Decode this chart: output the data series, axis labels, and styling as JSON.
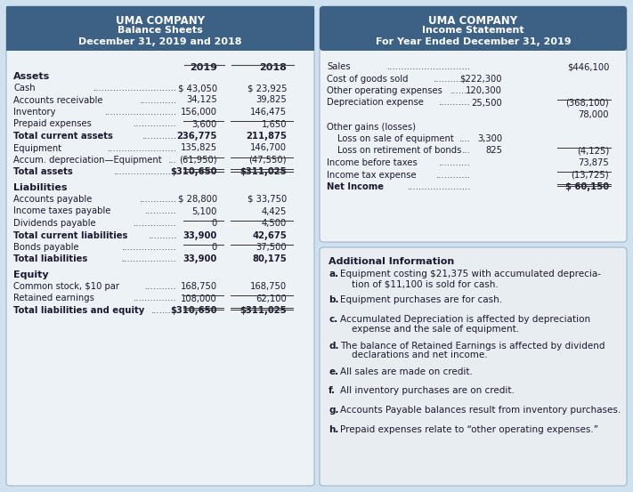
{
  "bg_color": "#cfe0ee",
  "header_bg": "#3d6184",
  "header_text_color": "#ffffff",
  "panel_bg": "#edf2f7",
  "panel_bg2": "#e8edf2",
  "text_color": "#1a1a2e",
  "left_header": [
    "UMA COMPANY",
    "Balance Sheets",
    "December 31, 2019 and 2018"
  ],
  "right_header": [
    "UMA COMPANY",
    "Income Statement",
    "For Year Ended December 31, 2019"
  ],
  "assets_label": "Assets",
  "assets_rows": [
    [
      "Cash",
      ".............................",
      "$ 43,050",
      "$ 23,925",
      false,
      false
    ],
    [
      "Accounts receivable",
      ".............",
      "34,125",
      "39,825",
      false,
      false
    ],
    [
      "Inventory",
      ".........................",
      "156,000",
      "146,475",
      false,
      false
    ],
    [
      "Prepaid expenses",
      "...............",
      "3,600",
      "1,650",
      true,
      false
    ],
    [
      "Total current assets",
      "............",
      "236,775",
      "211,875",
      false,
      false
    ],
    [
      "Equipment",
      "........................",
      "135,825",
      "146,700",
      false,
      false
    ],
    [
      "Accum. depreciation—Equipment",
      "...",
      "(61,950)",
      "(47,550)",
      true,
      false
    ],
    [
      "Total assets",
      "......................",
      "$310,650",
      "$311,025",
      true,
      true
    ]
  ],
  "liabilities_label": "Liabilities",
  "liabilities_rows": [
    [
      "Accounts payable",
      ".............",
      "$ 28,800",
      "$ 33,750",
      false,
      false
    ],
    [
      "Income taxes payable",
      "...........",
      "5,100",
      "4,425",
      false,
      false
    ],
    [
      "Dividends payable",
      "...............",
      "0",
      "4,500",
      true,
      false
    ],
    [
      "Total current liabilities",
      "..........",
      "33,900",
      "42,675",
      false,
      false
    ],
    [
      "Bonds payable",
      "...................",
      "0",
      "37,500",
      true,
      false
    ],
    [
      "Total liabilities",
      "...................",
      "33,900",
      "80,175",
      false,
      false
    ]
  ],
  "equity_label": "Equity",
  "equity_rows": [
    [
      "Common stock, $10 par",
      "...........",
      "168,750",
      "168,750",
      false,
      false
    ],
    [
      "Retained earnings",
      "...............",
      "108,000",
      "62,100",
      true,
      false
    ],
    [
      "Total liabilities and equity",
      ".........",
      "$310,650",
      "$311,025",
      true,
      true
    ]
  ],
  "income_rows": [
    [
      "Sales",
      ".............................",
      "",
      "$446,100",
      false,
      false
    ],
    [
      "Cost of goods sold",
      ".............",
      "$222,300",
      "",
      false,
      false
    ],
    [
      "Other operating expenses",
      ".......",
      "120,300",
      "",
      false,
      false
    ],
    [
      "Depreciation expense",
      "...........",
      "25,500",
      "(368,100)",
      true,
      false
    ],
    [
      "",
      "",
      "",
      "78,000",
      false,
      false
    ],
    [
      "Other gains (losses)",
      "",
      "",
      "",
      false,
      false
    ],
    [
      "  Loss on sale of equipment",
      "....",
      "3,300",
      "",
      false,
      false
    ],
    [
      "  Loss on retirement of bonds",
      "...",
      "825",
      "(4,125)",
      true,
      false
    ],
    [
      "Income before taxes",
      "...........",
      "",
      "73,875",
      false,
      false
    ],
    [
      "Income tax expense",
      "............",
      "",
      "(13,725)",
      true,
      false
    ],
    [
      "Net Income",
      "......................",
      "",
      "$ 60,150",
      true,
      true
    ]
  ],
  "additional_info_title": "Additional Information",
  "additional_info": [
    [
      "a.",
      "Equipment costing $21,375 with accumulated deprecia-",
      "    tion of $11,100 is sold for cash."
    ],
    [
      "b.",
      "Equipment purchases are for cash.",
      ""
    ],
    [
      "c.",
      "Accumulated Depreciation is affected by depreciation",
      "    expense and the sale of equipment."
    ],
    [
      "d.",
      "The balance of Retained Earnings is affected by dividend",
      "    declarations and net income."
    ],
    [
      "e.",
      "All sales are made on credit.",
      ""
    ],
    [
      "f.",
      "All inventory purchases are on credit.",
      ""
    ],
    [
      "g.",
      "Accounts Payable balances result from inventory purchases.",
      ""
    ],
    [
      "h.",
      "Prepaid expenses relate to “other operating expenses.”",
      ""
    ]
  ]
}
